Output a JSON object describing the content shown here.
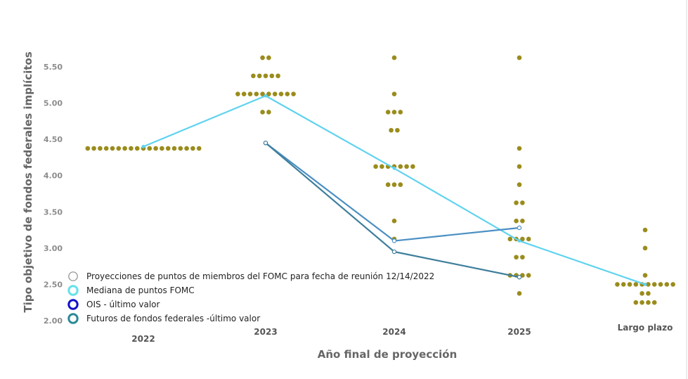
{
  "chart_data": {
    "type": "scatter",
    "xlabel": "Año final de proyección",
    "ylabel": "Tipo objetivo de fondos federales implícitos",
    "categories": [
      "2022",
      "2023",
      "2024",
      "2025",
      "Largo plazo"
    ],
    "yticks": [
      "2.00",
      "2.50",
      "3.00",
      "3.50",
      "4.00",
      "4.50",
      "5.00",
      "5.50"
    ],
    "ylim": [
      2.0,
      5.75
    ],
    "grid": false,
    "legend_position": "bottom-left",
    "dots": [
      {
        "category": "2022",
        "values": [
          4.375,
          4.375,
          4.375,
          4.375,
          4.375,
          4.375,
          4.375,
          4.375,
          4.375,
          4.375,
          4.375,
          4.375,
          4.375,
          4.375,
          4.375,
          4.375,
          4.375,
          4.375,
          4.375
        ]
      },
      {
        "category": "2023",
        "values": [
          5.625,
          5.625,
          5.375,
          5.375,
          5.375,
          5.375,
          5.375,
          5.125,
          5.125,
          5.125,
          5.125,
          5.125,
          5.125,
          5.125,
          5.125,
          5.125,
          5.125,
          4.875,
          4.875
        ]
      },
      {
        "category": "2024",
        "values": [
          5.625,
          5.125,
          4.875,
          4.875,
          4.875,
          4.625,
          4.625,
          4.125,
          4.125,
          4.125,
          4.125,
          4.125,
          4.125,
          4.125,
          3.875,
          3.875,
          3.875,
          3.375,
          3.125
        ]
      },
      {
        "category": "2025",
        "values": [
          5.625,
          4.375,
          4.125,
          3.875,
          3.625,
          3.625,
          3.375,
          3.375,
          3.125,
          3.125,
          3.125,
          3.125,
          2.875,
          2.875,
          2.625,
          2.625,
          2.625,
          2.625,
          2.375
        ]
      },
      {
        "category": "Largo plazo",
        "values": [
          3.25,
          3.0,
          2.625,
          2.5,
          2.5,
          2.5,
          2.5,
          2.5,
          2.5,
          2.5,
          2.5,
          2.5,
          2.5,
          2.375,
          2.375,
          2.25,
          2.25,
          2.25,
          2.25
        ]
      }
    ],
    "series": [
      {
        "name": "Mediana de puntos FOMC",
        "x": [
          "2022",
          "2023",
          "2024",
          "2025",
          "Largo plazo"
        ],
        "values": [
          4.4,
          5.1,
          4.1,
          3.1,
          2.5
        ]
      },
      {
        "name": "OIS - último valor",
        "x": [
          "2023",
          "2024",
          "2025"
        ],
        "values": [
          4.45,
          3.1,
          3.28
        ]
      },
      {
        "name": "Futuros de fondos federales -último valor",
        "x": [
          "2023",
          "2024",
          "2025"
        ],
        "values": [
          4.45,
          2.95,
          2.6
        ]
      }
    ],
    "legend": [
      "Proyecciones de puntos de miembros del FOMC para fecha de reunión 12/14/2022",
      "Mediana de puntos FOMC",
      "OIS - último valor",
      "Futuros de fondos federales -último valor"
    ],
    "colors": {
      "dots": "#9a8c1c",
      "median": "#5fd3ef",
      "ois": "#4a8fc4",
      "futures": "#3f7f9c",
      "legend_dots_ring": "#8c8c8c",
      "legend_median_ring": "#66e0ea",
      "legend_ois_ring": "#1010c8",
      "legend_futures_ring": "#2a8a96"
    }
  }
}
